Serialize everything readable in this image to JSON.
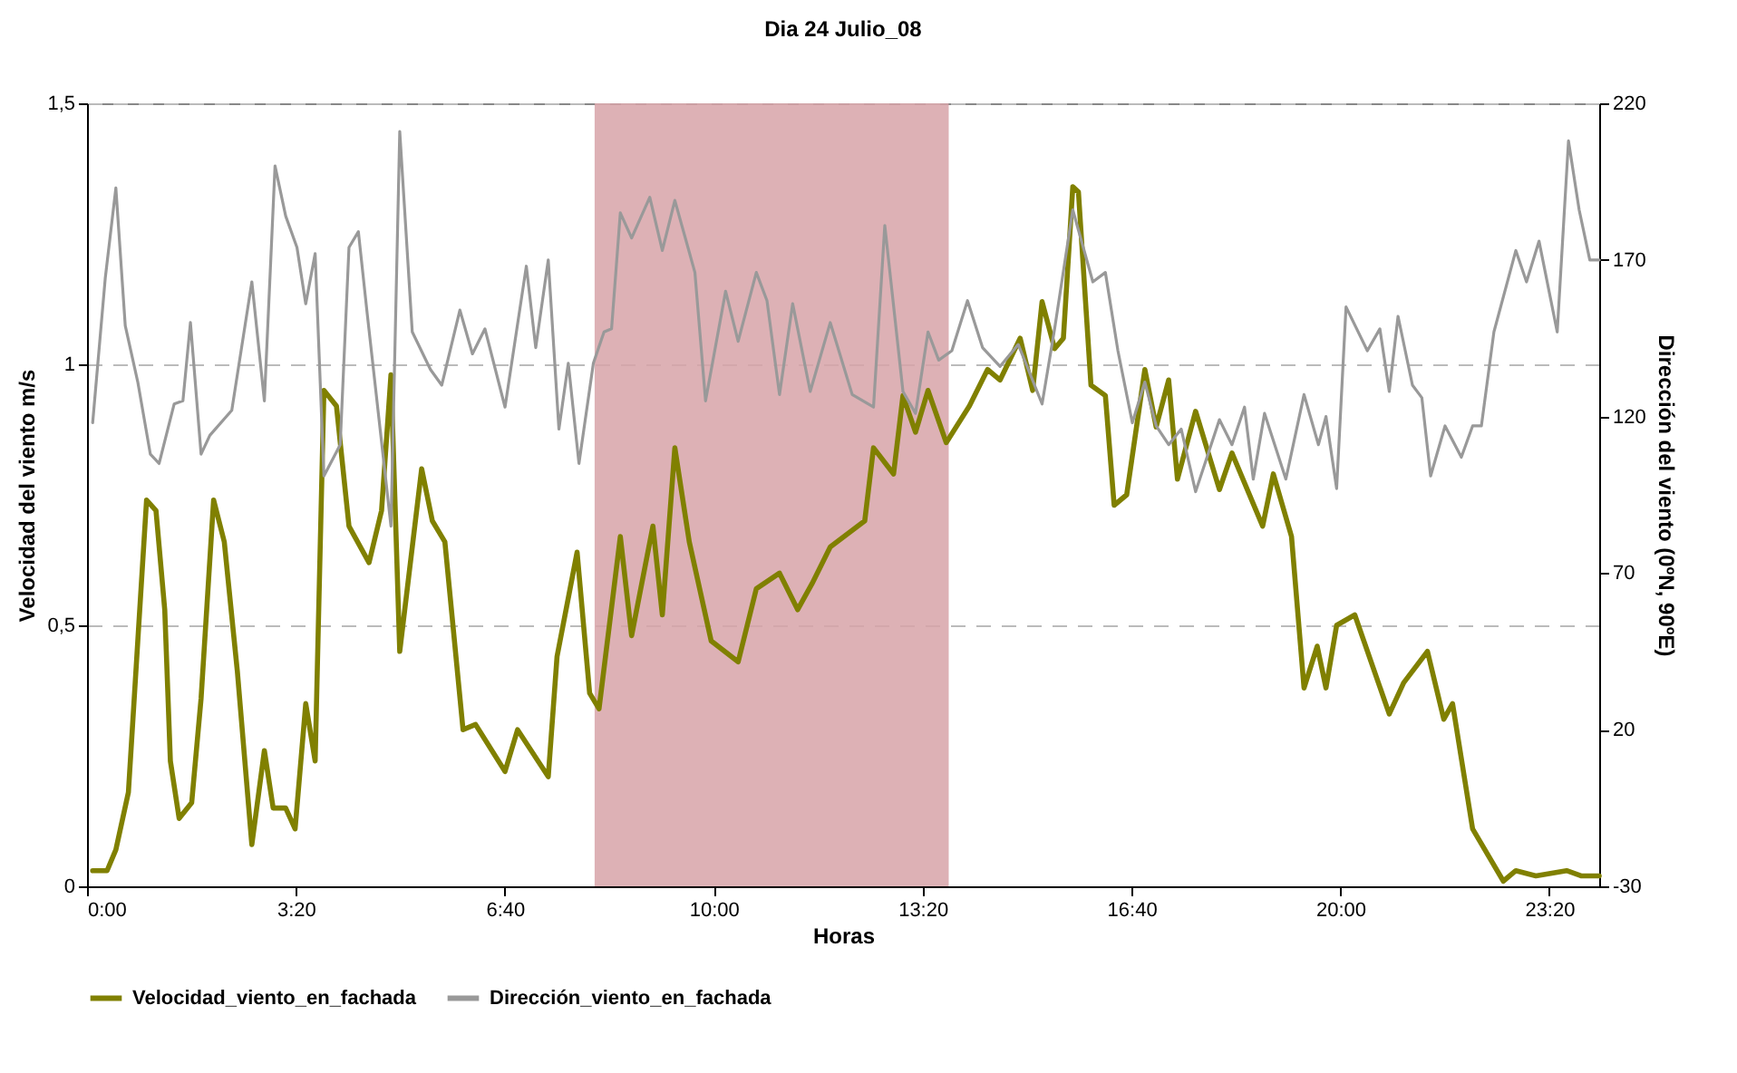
{
  "chart_data": {
    "type": "line",
    "title": "Dia 24 Julio_08",
    "xlabel": "Horas",
    "ylabel": "Velocidad del viento m/s",
    "y2label": "Dirección del viento (0ºN, 90ºE)",
    "xlim": [
      0,
      24.13
    ],
    "xticks": [
      {
        "value": 0,
        "label": "0:00"
      },
      {
        "value": 3.3333,
        "label": "3:20"
      },
      {
        "value": 6.6667,
        "label": "6:40"
      },
      {
        "value": 10,
        "label": "10:00"
      },
      {
        "value": 13.3333,
        "label": "13:20"
      },
      {
        "value": 16.6667,
        "label": "16:40"
      },
      {
        "value": 20,
        "label": "20:00"
      },
      {
        "value": 23.3333,
        "label": "23:20"
      }
    ],
    "ylim": [
      0,
      1.5
    ],
    "yticks": [
      0,
      {
        "value": 0.5,
        "label": "0,5"
      },
      1,
      {
        "value": 1.5,
        "label": "1,5"
      }
    ],
    "y2lim": [
      -30,
      220
    ],
    "y2ticks": [
      -30,
      20,
      70,
      120,
      170,
      220
    ],
    "grid": "y",
    "legend": "bottom",
    "bands": [
      {
        "axis": "x",
        "from": 8.1,
        "to": 13.75,
        "color": "#d7a3a8"
      }
    ],
    "series": [
      {
        "name": "Velocidad_viento_en_fachada",
        "color": "#808000",
        "x": [
          0.09,
          0.32,
          0.46,
          0.66,
          0.81,
          0.95,
          1.1,
          1.24,
          1.33,
          1.47,
          1.67,
          1.82,
          2.02,
          2.19,
          2.4,
          2.63,
          2.83,
          2.97,
          3.17,
          3.32,
          3.49,
          3.64,
          3.78,
          3.98,
          4.18,
          4.5,
          4.7,
          4.85,
          4.99,
          5.34,
          5.51,
          5.71,
          6.0,
          6.2,
          6.67,
          6.87,
          7.36,
          7.5,
          7.82,
          8.02,
          8.17,
          8.51,
          8.69,
          9.03,
          9.18,
          9.38,
          9.61,
          9.96,
          10.39,
          10.68,
          11.05,
          11.34,
          11.57,
          11.86,
          12.41,
          12.55,
          12.87,
          13.02,
          13.22,
          13.42,
          13.71,
          14.08,
          14.37,
          14.57,
          14.89,
          15.09,
          15.24,
          15.44,
          15.58,
          15.73,
          15.82,
          16.02,
          16.25,
          16.39,
          16.59,
          16.88,
          17.06,
          17.26,
          17.4,
          17.69,
          18.07,
          18.27,
          18.76,
          18.93,
          19.22,
          19.42,
          19.63,
          19.77,
          19.94,
          20.23,
          20.78,
          21.01,
          21.39,
          21.65,
          21.79,
          22.11,
          22.6,
          22.8,
          23.12,
          23.61,
          23.84,
          24.13
        ],
        "values": [
          0.03,
          0.03,
          0.07,
          0.18,
          0.47,
          0.74,
          0.72,
          0.53,
          0.24,
          0.13,
          0.16,
          0.36,
          0.74,
          0.66,
          0.41,
          0.08,
          0.26,
          0.15,
          0.15,
          0.11,
          0.35,
          0.24,
          0.95,
          0.92,
          0.69,
          0.62,
          0.72,
          0.98,
          0.45,
          0.8,
          0.7,
          0.66,
          0.3,
          0.31,
          0.22,
          0.3,
          0.21,
          0.44,
          0.64,
          0.37,
          0.34,
          0.67,
          0.48,
          0.69,
          0.52,
          0.84,
          0.66,
          0.47,
          0.43,
          0.57,
          0.6,
          0.53,
          0.58,
          0.65,
          0.7,
          0.84,
          0.79,
          0.94,
          0.87,
          0.95,
          0.85,
          0.92,
          0.99,
          0.97,
          1.05,
          0.95,
          1.12,
          1.03,
          1.05,
          1.34,
          1.33,
          0.96,
          0.94,
          0.73,
          0.75,
          0.99,
          0.88,
          0.97,
          0.78,
          0.91,
          0.76,
          0.83,
          0.69,
          0.79,
          0.67,
          0.38,
          0.46,
          0.38,
          0.5,
          0.52,
          0.33,
          0.39,
          0.45,
          0.32,
          0.35,
          0.11,
          0.01,
          0.03,
          0.02,
          0.03,
          0.02,
          0.02
        ]
      },
      {
        "name": "Dirección_viento_en_fachada",
        "color": "#999999",
        "axis": "y2",
        "x": [
          0.09,
          0.29,
          0.46,
          0.61,
          0.81,
          1.01,
          1.15,
          1.39,
          1.53,
          1.65,
          1.82,
          1.96,
          2.31,
          2.63,
          2.83,
          3.0,
          3.17,
          3.35,
          3.49,
          3.64,
          3.78,
          4.04,
          4.18,
          4.33,
          4.47,
          4.85,
          4.99,
          5.19,
          5.48,
          5.66,
          5.95,
          6.15,
          6.35,
          6.67,
          7.01,
          7.16,
          7.36,
          7.53,
          7.68,
          7.85,
          8.08,
          8.25,
          8.37,
          8.51,
          8.69,
          8.98,
          9.18,
          9.38,
          9.7,
          9.87,
          10.19,
          10.39,
          10.68,
          10.85,
          11.05,
          11.26,
          11.54,
          11.86,
          12.21,
          12.55,
          12.73,
          13.02,
          13.22,
          13.42,
          13.59,
          13.8,
          14.05,
          14.29,
          14.57,
          14.86,
          15.24,
          15.44,
          15.73,
          16.05,
          16.25,
          16.45,
          16.68,
          16.88,
          17.06,
          17.26,
          17.46,
          17.69,
          18.07,
          18.27,
          18.47,
          18.61,
          18.79,
          19.13,
          19.42,
          19.65,
          19.77,
          19.94,
          20.09,
          20.43,
          20.63,
          20.78,
          20.92,
          21.15,
          21.3,
          21.44,
          21.67,
          21.93,
          22.11,
          22.25,
          22.45,
          22.8,
          22.97,
          23.17,
          23.46,
          23.64,
          23.81,
          23.98,
          24.13
        ],
        "values": [
          118,
          164,
          193,
          149,
          131,
          108,
          105,
          124,
          125,
          150,
          108,
          114,
          122,
          163,
          125,
          200,
          184,
          174,
          156,
          172,
          101,
          111,
          174,
          179,
          153,
          85,
          211,
          147,
          135,
          130,
          154,
          140,
          148,
          123,
          168,
          142,
          170,
          116,
          137,
          105,
          137,
          147,
          148,
          185,
          177,
          190,
          173,
          189,
          166,
          125,
          160,
          144,
          166,
          157,
          127,
          156,
          128,
          150,
          127,
          123,
          181,
          128,
          121,
          147,
          138,
          141,
          157,
          142,
          136,
          143,
          124,
          148,
          186,
          163,
          166,
          141,
          118,
          131,
          117,
          111,
          116,
          96,
          119,
          111,
          123,
          100,
          121,
          100,
          127,
          111,
          120,
          97,
          155,
          141,
          148,
          128,
          152,
          130,
          126,
          101,
          117,
          107,
          117,
          117,
          147,
          173,
          163,
          176,
          147,
          208,
          186,
          170,
          170
        ]
      }
    ]
  }
}
